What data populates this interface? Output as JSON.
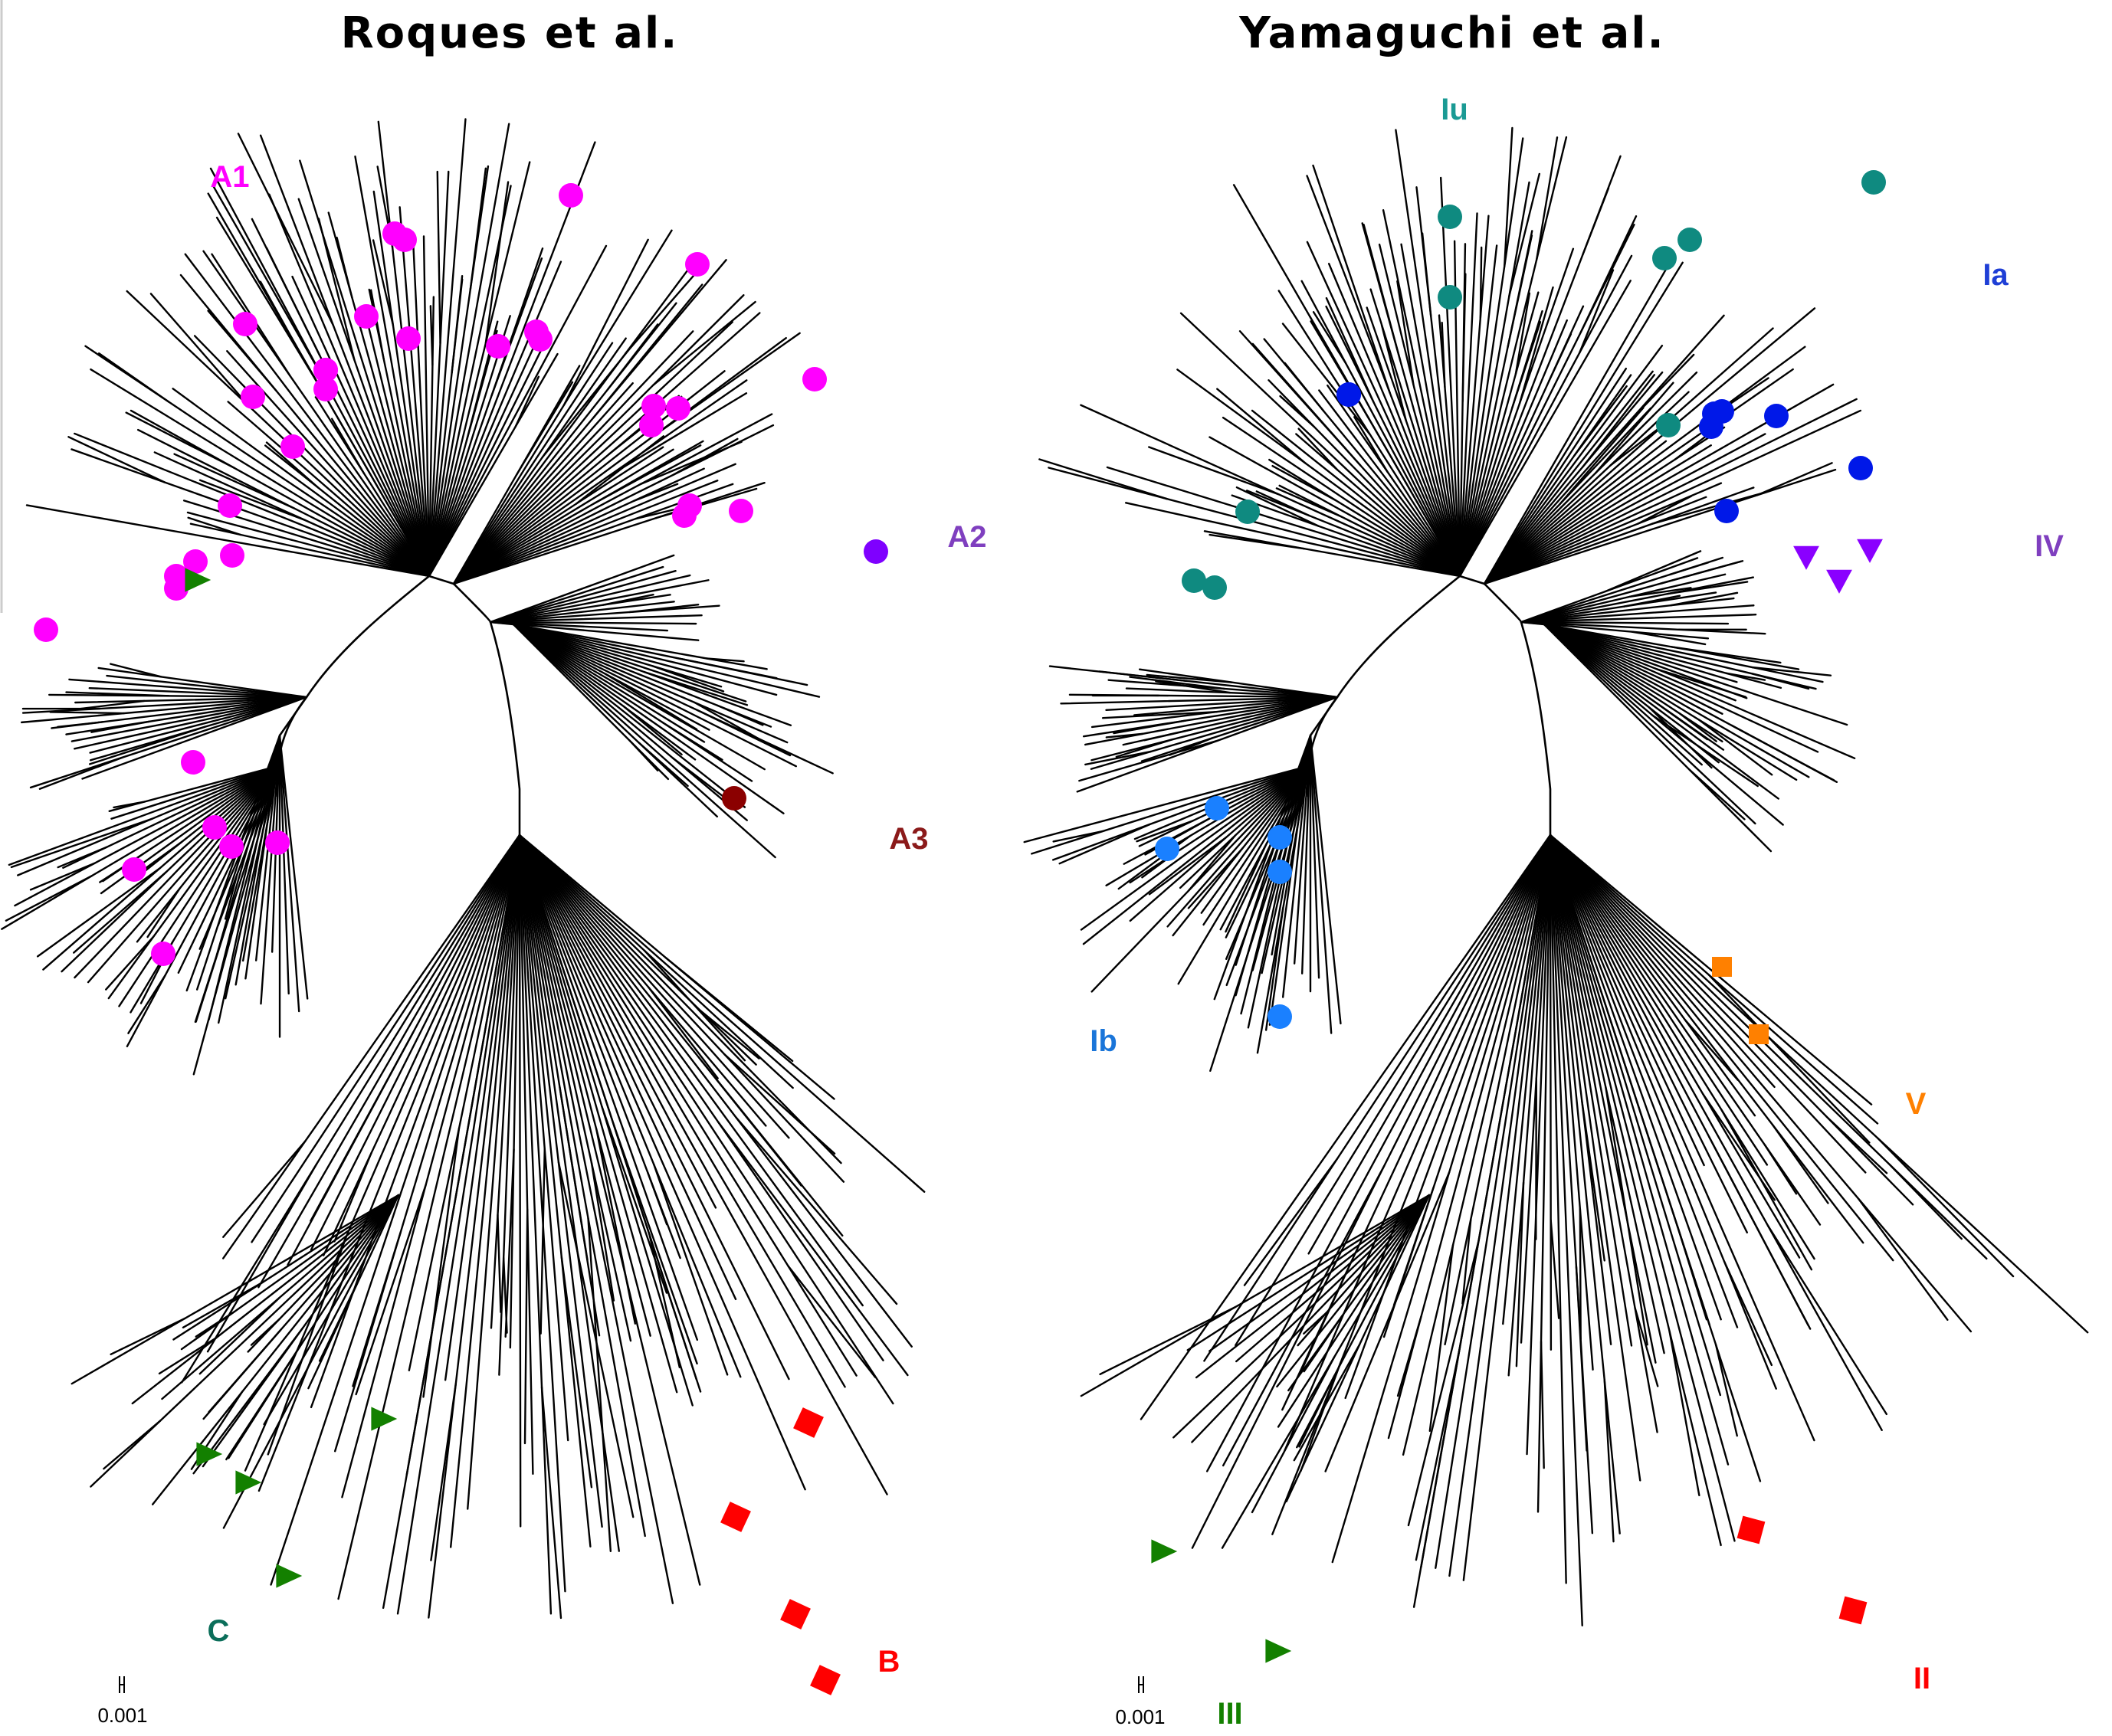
{
  "figure": {
    "panels": [
      {
        "id": "roques",
        "title": "Roques et al.",
        "scale_label": "0.001",
        "clades": [
          {
            "id": "A1",
            "label": "A1",
            "color": "#ff00ff",
            "marker": "circle"
          },
          {
            "id": "A2",
            "label": "A2",
            "color": "#7f00ff",
            "marker": "circle"
          },
          {
            "id": "A3",
            "label": "A3",
            "color": "#8b0000",
            "marker": "circle"
          },
          {
            "id": "B",
            "label": "B",
            "color": "#ff0000",
            "marker": "square"
          },
          {
            "id": "C",
            "label": "C",
            "color": "#138000",
            "marker": "triangle-right"
          }
        ]
      },
      {
        "id": "yamaguchi",
        "title": "Yamaguchi et al.",
        "scale_label": "0.001",
        "clades": [
          {
            "id": "Iu",
            "label": "Iu",
            "color": "#0f8a80",
            "marker": "circle"
          },
          {
            "id": "Ia",
            "label": "Ia",
            "color": "#0018e8",
            "marker": "circle"
          },
          {
            "id": "IV",
            "label": "IV",
            "color": "#8a00ff",
            "marker": "triangle-down"
          },
          {
            "id": "Ib",
            "label": "Ib",
            "color": "#1a80ff",
            "marker": "circle"
          },
          {
            "id": "V",
            "label": "V",
            "color": "#ff8000",
            "marker": "square"
          },
          {
            "id": "II",
            "label": "II",
            "color": "#ff0000",
            "marker": "square"
          },
          {
            "id": "III",
            "label": "III",
            "color": "#138000",
            "marker": "triangle-right"
          }
        ]
      }
    ]
  }
}
